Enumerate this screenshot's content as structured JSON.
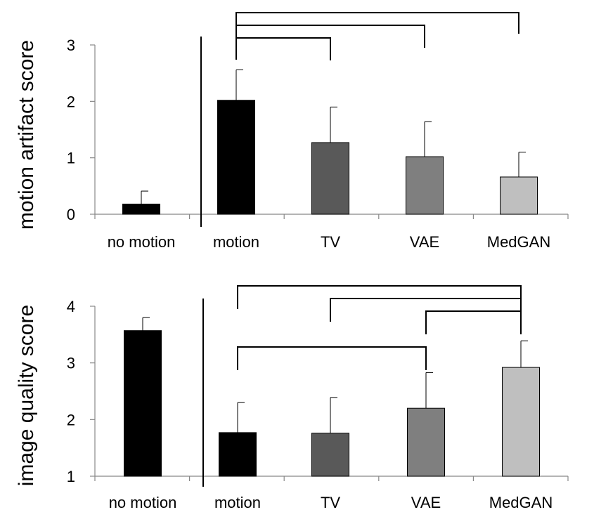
{
  "chart_data": [
    {
      "type": "bar",
      "ylabel": "motion artifact score",
      "categories": [
        "no motion",
        "motion",
        "TV",
        "VAE",
        "MedGAN"
      ],
      "values": [
        0.18,
        2.02,
        1.27,
        1.02,
        0.66
      ],
      "errors": [
        0.23,
        0.54,
        0.63,
        0.62,
        0.44
      ],
      "colors": [
        "#000000",
        "#000000",
        "#595959",
        "#7f7f7f",
        "#bfbfbf"
      ],
      "ylim": [
        0,
        3
      ],
      "yticks": [
        0,
        1,
        2,
        3
      ],
      "brackets": [
        {
          "from": 1,
          "to": 2
        },
        {
          "from": 1,
          "to": 3
        },
        {
          "from": 1,
          "to": 4
        }
      ]
    },
    {
      "type": "bar",
      "ylabel": "image quality score",
      "categories": [
        "no motion",
        "motion",
        "TV",
        "VAE",
        "MedGAN"
      ],
      "values": [
        3.57,
        1.77,
        1.76,
        2.2,
        2.92
      ],
      "errors": [
        0.23,
        0.53,
        0.63,
        0.63,
        0.47
      ],
      "colors": [
        "#000000",
        "#000000",
        "#595959",
        "#7f7f7f",
        "#bfbfbf"
      ],
      "ylim": [
        1,
        4
      ],
      "yticks": [
        1,
        2,
        3,
        4
      ],
      "brackets": [
        {
          "from": 1,
          "to": 4
        },
        {
          "from": 2,
          "to": 4
        },
        {
          "from": 3,
          "to": 4
        },
        {
          "from": 1,
          "to": 3
        }
      ]
    }
  ]
}
